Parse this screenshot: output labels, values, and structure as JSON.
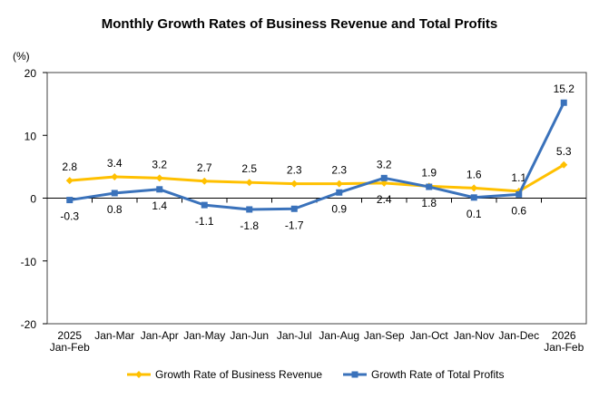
{
  "chart_data": {
    "type": "line",
    "title": "Monthly Growth Rates of Business Revenue and Total Profits",
    "ylabel": "(%)",
    "xlabel": "",
    "ylim": [
      -20,
      20
    ],
    "yticks": [
      20,
      10,
      0,
      -10,
      -20
    ],
    "categories": [
      [
        "2025",
        "Jan-Feb"
      ],
      [
        "Jan-Mar"
      ],
      [
        "Jan-Apr"
      ],
      [
        "Jan-May"
      ],
      [
        "Jan-Jun"
      ],
      [
        "Jan-Jul"
      ],
      [
        "Jan-Aug"
      ],
      [
        "Jan-Sep"
      ],
      [
        "Jan-Oct"
      ],
      [
        "Jan-Nov"
      ],
      [
        "Jan-Dec"
      ],
      [
        "2026",
        "Jan-Feb"
      ]
    ],
    "grid": false,
    "legend_position": "bottom",
    "series": [
      {
        "name": "Growth Rate of Business Revenue",
        "color": "#FFC000",
        "marker": "diamond",
        "values": [
          2.8,
          3.4,
          3.2,
          2.7,
          2.5,
          2.3,
          2.3,
          2.4,
          1.9,
          1.6,
          1.1,
          5.3
        ]
      },
      {
        "name": "Growth Rate of Total Profits",
        "color": "#3A72BB",
        "marker": "square",
        "values": [
          -0.3,
          0.8,
          1.4,
          -1.1,
          -1.8,
          -1.7,
          0.9,
          3.2,
          1.8,
          0.1,
          0.6,
          15.2
        ]
      }
    ]
  }
}
